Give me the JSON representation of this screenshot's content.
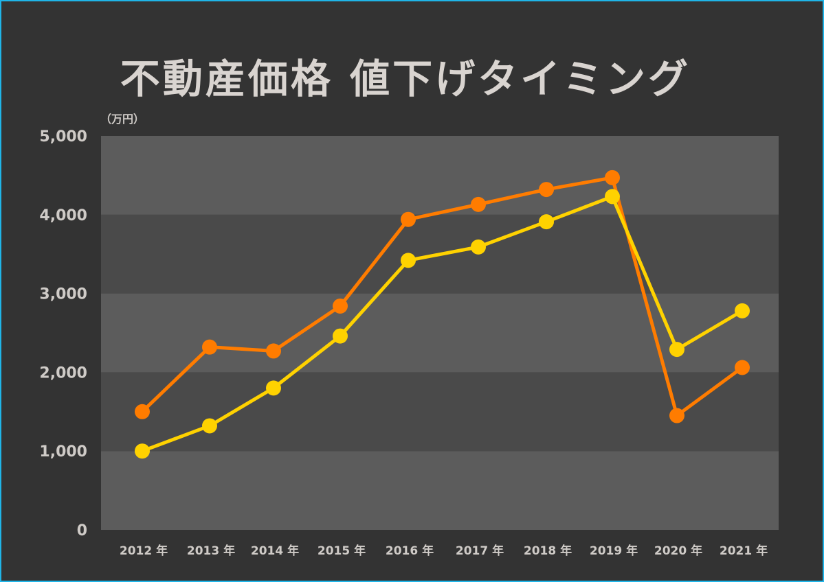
{
  "chart_data": {
    "type": "line",
    "title": "不動産価格 値下げタイミング",
    "ylabel": "（万円）",
    "xlabel": "",
    "categories": [
      "2012 年",
      "2013 年",
      "2014 年",
      "2015 年",
      "2016 年",
      "2017 年",
      "2018 年",
      "2019 年",
      "2020 年",
      "2021 年"
    ],
    "ylim": [
      0,
      5000
    ],
    "yticks": [
      0,
      1000,
      2000,
      3000,
      4000,
      5000
    ],
    "ytick_labels": [
      "0",
      "1,000",
      "2,000",
      "3,000",
      "4,000",
      "5,000"
    ],
    "grid": "alternating horizontal bands",
    "legend": "none",
    "series": [
      {
        "color": "#ff7c00",
        "values": [
          1500,
          2320,
          2270,
          2840,
          3940,
          4130,
          4320,
          4470,
          1450,
          2060
        ]
      },
      {
        "color": "#ffd200",
        "values": [
          1000,
          1320,
          1800,
          2460,
          3420,
          3590,
          3910,
          4230,
          2290,
          2780
        ]
      }
    ],
    "colors": {
      "background": "#333333",
      "band_light": "#5c5c5c",
      "band_dark": "#4a4a4a",
      "border": "#1fb5e8",
      "text": "#d9d4d0"
    }
  }
}
